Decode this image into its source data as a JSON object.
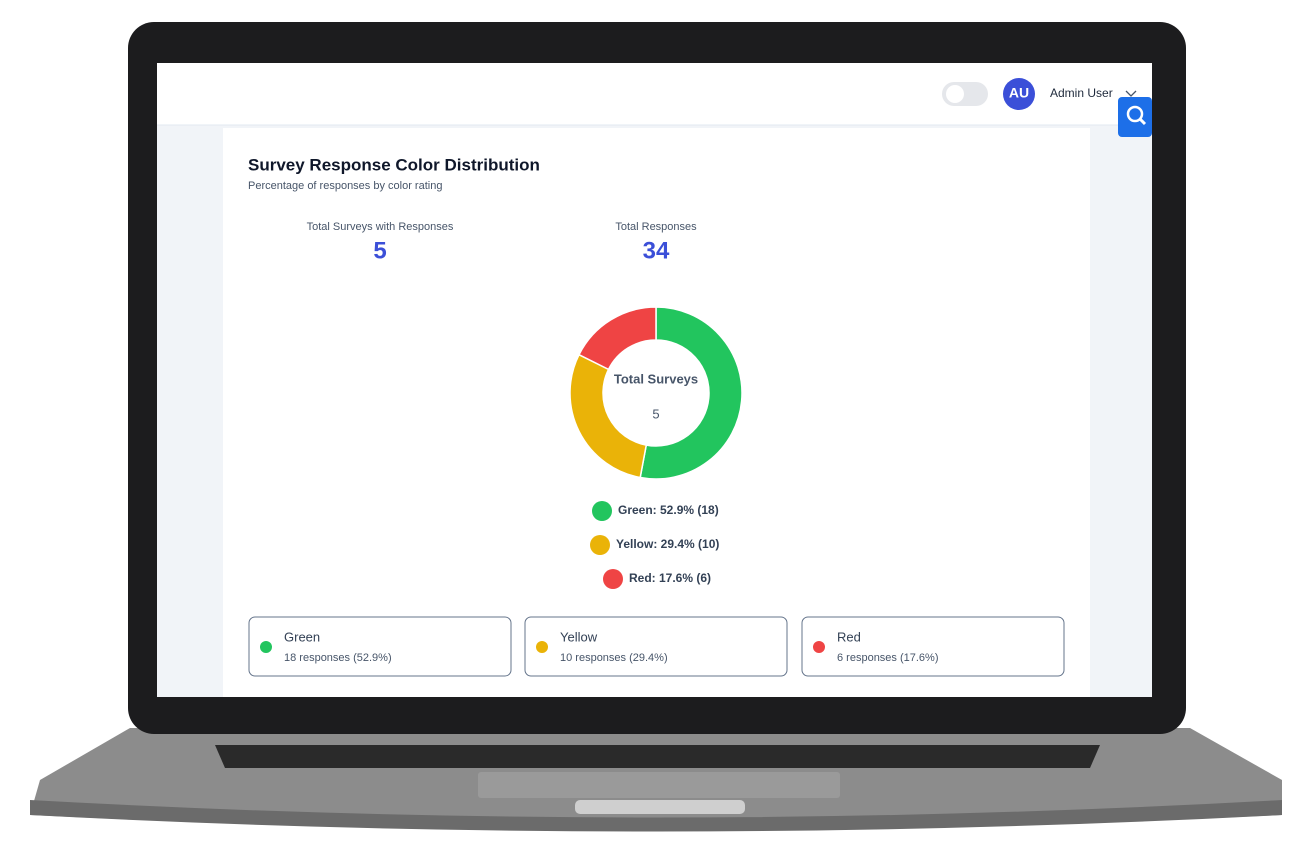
{
  "header": {
    "avatar": "AU",
    "user": "Admin User"
  },
  "chart_data": {
    "type": "donut",
    "title": "Survey Response Color Distribution",
    "subtitle": "Percentage of responses by color rating",
    "center_label": "Total Surveys",
    "center_value": 5,
    "categories": [
      "Green",
      "Yellow",
      "Red"
    ],
    "values": [
      18,
      10,
      6
    ],
    "colors": [
      "#22c55e",
      "#eab308",
      "#ef4444"
    ],
    "legend_labels": [
      "Green: 52.9% (18)",
      "Yellow: 29.4% (10)",
      "Red: 17.6% (6)"
    ]
  },
  "stats": [
    {
      "label": "Total Surveys with Responses",
      "value": 5
    },
    {
      "label": "Total Responses",
      "value": 34
    }
  ],
  "summary_cards": [
    {
      "name": "Green",
      "detail": "18 responses (52.9%)"
    },
    {
      "name": "Yellow",
      "detail": "10 responses (29.4%)"
    },
    {
      "name": "Red",
      "detail": "6 responses (17.6%)"
    }
  ]
}
